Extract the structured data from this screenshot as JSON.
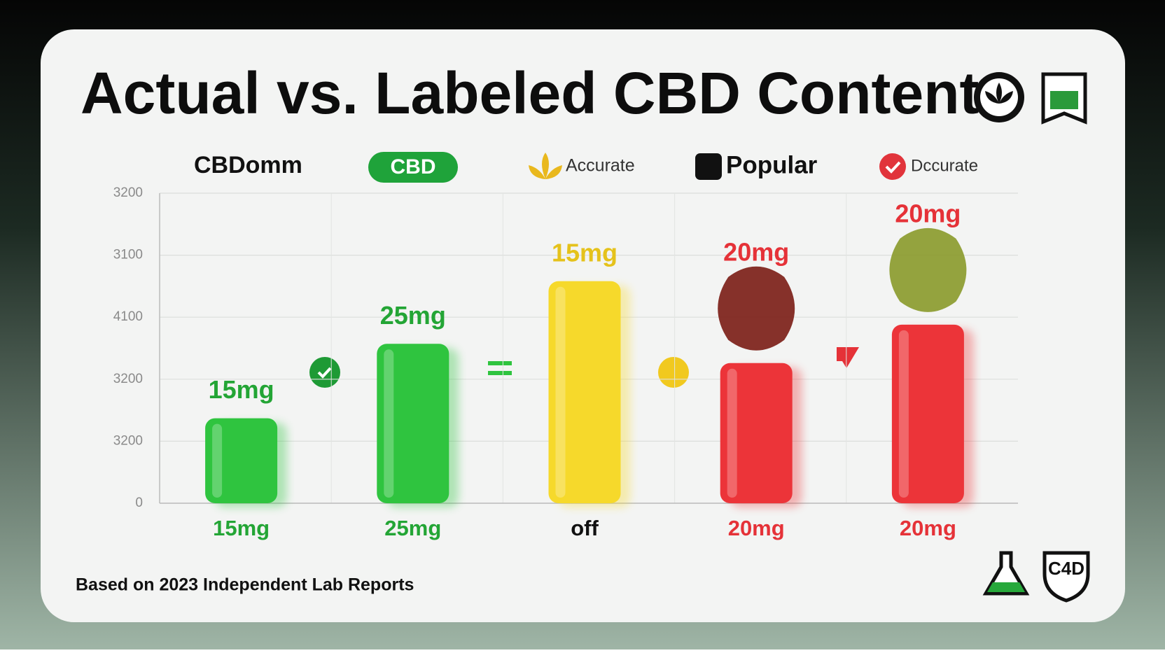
{
  "chart_data": {
    "type": "bar",
    "title": "Actual vs. Labeled CBD Content",
    "legend": [
      "CBDomm",
      "CBD",
      "Accurate",
      "Popular",
      "Dccurate"
    ],
    "categories": [
      "15mg",
      "25mg",
      "off",
      "20mg",
      "20mg"
    ],
    "bar_labels": [
      "15mg",
      "25mg",
      "15mg",
      "20mg",
      "20mg"
    ],
    "values": [
      1.37,
      2.57,
      3.58,
      2.26,
      2.88
    ],
    "colors": [
      "#2fc43f",
      "#2fc43f",
      "#f6d92b",
      "#ec3439",
      "#ec3439"
    ],
    "label_colors": [
      "#23a535",
      "#23a535",
      "#e5c21b",
      "#e53238",
      "#e53238"
    ],
    "category_colors": [
      "#23a535",
      "#23a535",
      "#111111",
      "#e53238",
      "#e53238"
    ],
    "ylim": [
      0,
      5
    ],
    "yticks": [
      0,
      {
        "value": 1,
        "label": "3200"
      },
      {
        "value": 2,
        "label": "3200"
      },
      {
        "value": 3,
        "label": "4100"
      },
      {
        "value": 4,
        "label": "3100"
      },
      {
        "value": 5,
        "label": "3200"
      }
    ],
    "grid": true,
    "footnote": "Based on 2023 Independent Lab Reports",
    "badge": "C4D"
  }
}
